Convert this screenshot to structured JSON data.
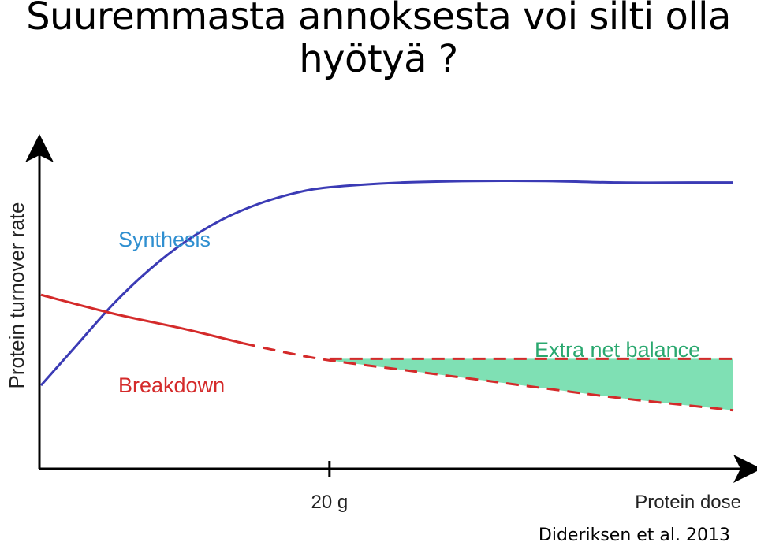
{
  "slide": {
    "title_line1": "Suuremmasta annoksesta voi silti olla",
    "title_line2": "hyötyä ?",
    "citation": "Dideriksen et al. 2013"
  },
  "chart_data": {
    "type": "line",
    "ylabel": "Protein turnover rate",
    "xlabel": "Protein dose",
    "x_ticks": [
      {
        "value": 20,
        "label": "20 g"
      }
    ],
    "xlim": [
      0,
      50
    ],
    "ylim": [
      0,
      10
    ],
    "grid": false,
    "series": [
      {
        "name": "Synthesis",
        "color": "#3b3bb5",
        "label_color": "#2f8fd0",
        "style": "solid",
        "points": [
          [
            0,
            2.7
          ],
          [
            2.5,
            4.0
          ],
          [
            5,
            5.3
          ],
          [
            7.5,
            6.4
          ],
          [
            10,
            7.3
          ],
          [
            12.5,
            8.0
          ],
          [
            15,
            8.5
          ],
          [
            17.5,
            8.85
          ],
          [
            20,
            9.05
          ],
          [
            25,
            9.2
          ],
          [
            30,
            9.25
          ],
          [
            35,
            9.25
          ],
          [
            40,
            9.2
          ],
          [
            45,
            9.2
          ],
          [
            48,
            9.2
          ]
        ]
      },
      {
        "name": "Breakdown",
        "color": "#d42a2a",
        "label_color": "#d42a2a",
        "style": "solid-then-dashed",
        "dash_from_x": 14,
        "points": [
          [
            0,
            5.6
          ],
          [
            5,
            5.0
          ],
          [
            10,
            4.5
          ],
          [
            14,
            4.05
          ],
          [
            17,
            3.75
          ],
          [
            20,
            3.5
          ],
          [
            25,
            3.2
          ],
          [
            30,
            2.9
          ],
          [
            35,
            2.6
          ],
          [
            40,
            2.3
          ],
          [
            45,
            2.05
          ],
          [
            48,
            1.9
          ]
        ]
      },
      {
        "name": "",
        "color": "#d42a2a",
        "style": "dashed",
        "points": [
          [
            20,
            3.55
          ],
          [
            48,
            3.55
          ]
        ]
      }
    ],
    "annotations": [
      {
        "text": "Extra net balance",
        "color": "#2aa86f",
        "fill": "#7fe0b4",
        "region_from_x": 20,
        "region_to_x": 48
      }
    ]
  }
}
